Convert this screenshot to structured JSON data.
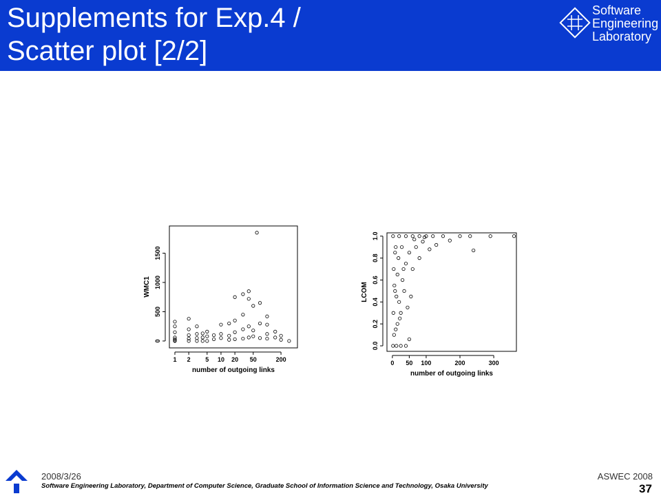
{
  "header": {
    "title_lines": [
      "Supplements for Exp.4 /",
      "Scatter plot [2/2]"
    ],
    "logo_lines": [
      "Software",
      "Engineering",
      "Laboratory"
    ]
  },
  "chart_data": [
    {
      "type": "scatter",
      "x_label": "number of outgoing links",
      "y_label": "WMC1",
      "log_x": true,
      "x": [
        1,
        1,
        1,
        1,
        1,
        1,
        1,
        2,
        2,
        2,
        2,
        2,
        3,
        3,
        3,
        3,
        4,
        4,
        4,
        5,
        5,
        5,
        7,
        7,
        10,
        10,
        10,
        15,
        15,
        15,
        20,
        20,
        20,
        20,
        30,
        30,
        30,
        30,
        40,
        40,
        40,
        40,
        50,
        50,
        50,
        60,
        70,
        70,
        70,
        100,
        100,
        100,
        100,
        150,
        150,
        200,
        200,
        300
      ],
      "y": [
        0,
        10,
        30,
        60,
        150,
        250,
        330,
        0,
        40,
        100,
        200,
        380,
        0,
        50,
        120,
        250,
        0,
        60,
        130,
        0,
        80,
        160,
        30,
        100,
        50,
        120,
        280,
        20,
        90,
        300,
        30,
        150,
        350,
        750,
        40,
        200,
        450,
        800,
        60,
        250,
        720,
        850,
        80,
        180,
        600,
        1850,
        50,
        300,
        650,
        40,
        120,
        280,
        420,
        60,
        160,
        20,
        90,
        0
      ],
      "xlim": [
        0.76,
        455
      ],
      "xticks": [
        1,
        2,
        5,
        10,
        20,
        50,
        200
      ],
      "ylim": [
        -118,
        1965
      ],
      "yticks": [
        0,
        500,
        1000,
        1500
      ]
    },
    {
      "type": "scatter",
      "x_label": "number of outgoing links",
      "y_label": "LCOM",
      "log_x": false,
      "x": [
        2,
        5,
        3,
        8,
        4,
        10,
        2,
        20,
        40,
        60,
        80,
        100,
        120,
        150,
        200,
        230,
        290,
        360,
        15,
        20,
        30,
        40,
        50,
        70,
        90,
        25,
        35,
        60,
        80,
        110,
        130,
        50,
        240,
        12,
        25,
        40,
        10,
        15,
        45,
        55,
        6,
        18,
        28,
        65,
        95,
        170,
        12,
        22,
        8,
        33
      ],
      "y": [
        0,
        0.1,
        0.3,
        0.5,
        0.7,
        0.9,
        1,
        1,
        1,
        1,
        1,
        1,
        1,
        1,
        1,
        1,
        1,
        1,
        0.2,
        0.4,
        0.6,
        0.75,
        0.85,
        0.9,
        0.95,
        0.3,
        0.5,
        0.7,
        0.8,
        0.88,
        0.92,
        0.06,
        0.87,
        0,
        0,
        0,
        0.15,
        0.65,
        0.35,
        0.45,
        0.55,
        0.8,
        0.9,
        0.97,
        0.99,
        0.96,
        0.45,
        0.25,
        0.85,
        0.7
      ],
      "xlim": [
        -16,
        367
      ],
      "xticks": [
        0,
        50,
        100,
        200,
        300
      ],
      "ylim": [
        -0.05,
        1.03
      ],
      "yticks": [
        {
          "value": 0,
          "label": "0.0"
        },
        0.2,
        0.4,
        0.6,
        0.8,
        {
          "value": 1,
          "label": "1.0"
        }
      ]
    }
  ],
  "footer": {
    "date": "2008/3/26",
    "event": "ASWEC 2008",
    "note": "Software Engineering Laboratory, Department of Computer Science, Graduate School of Information Science and Technology, Osaka University",
    "page": "37"
  }
}
